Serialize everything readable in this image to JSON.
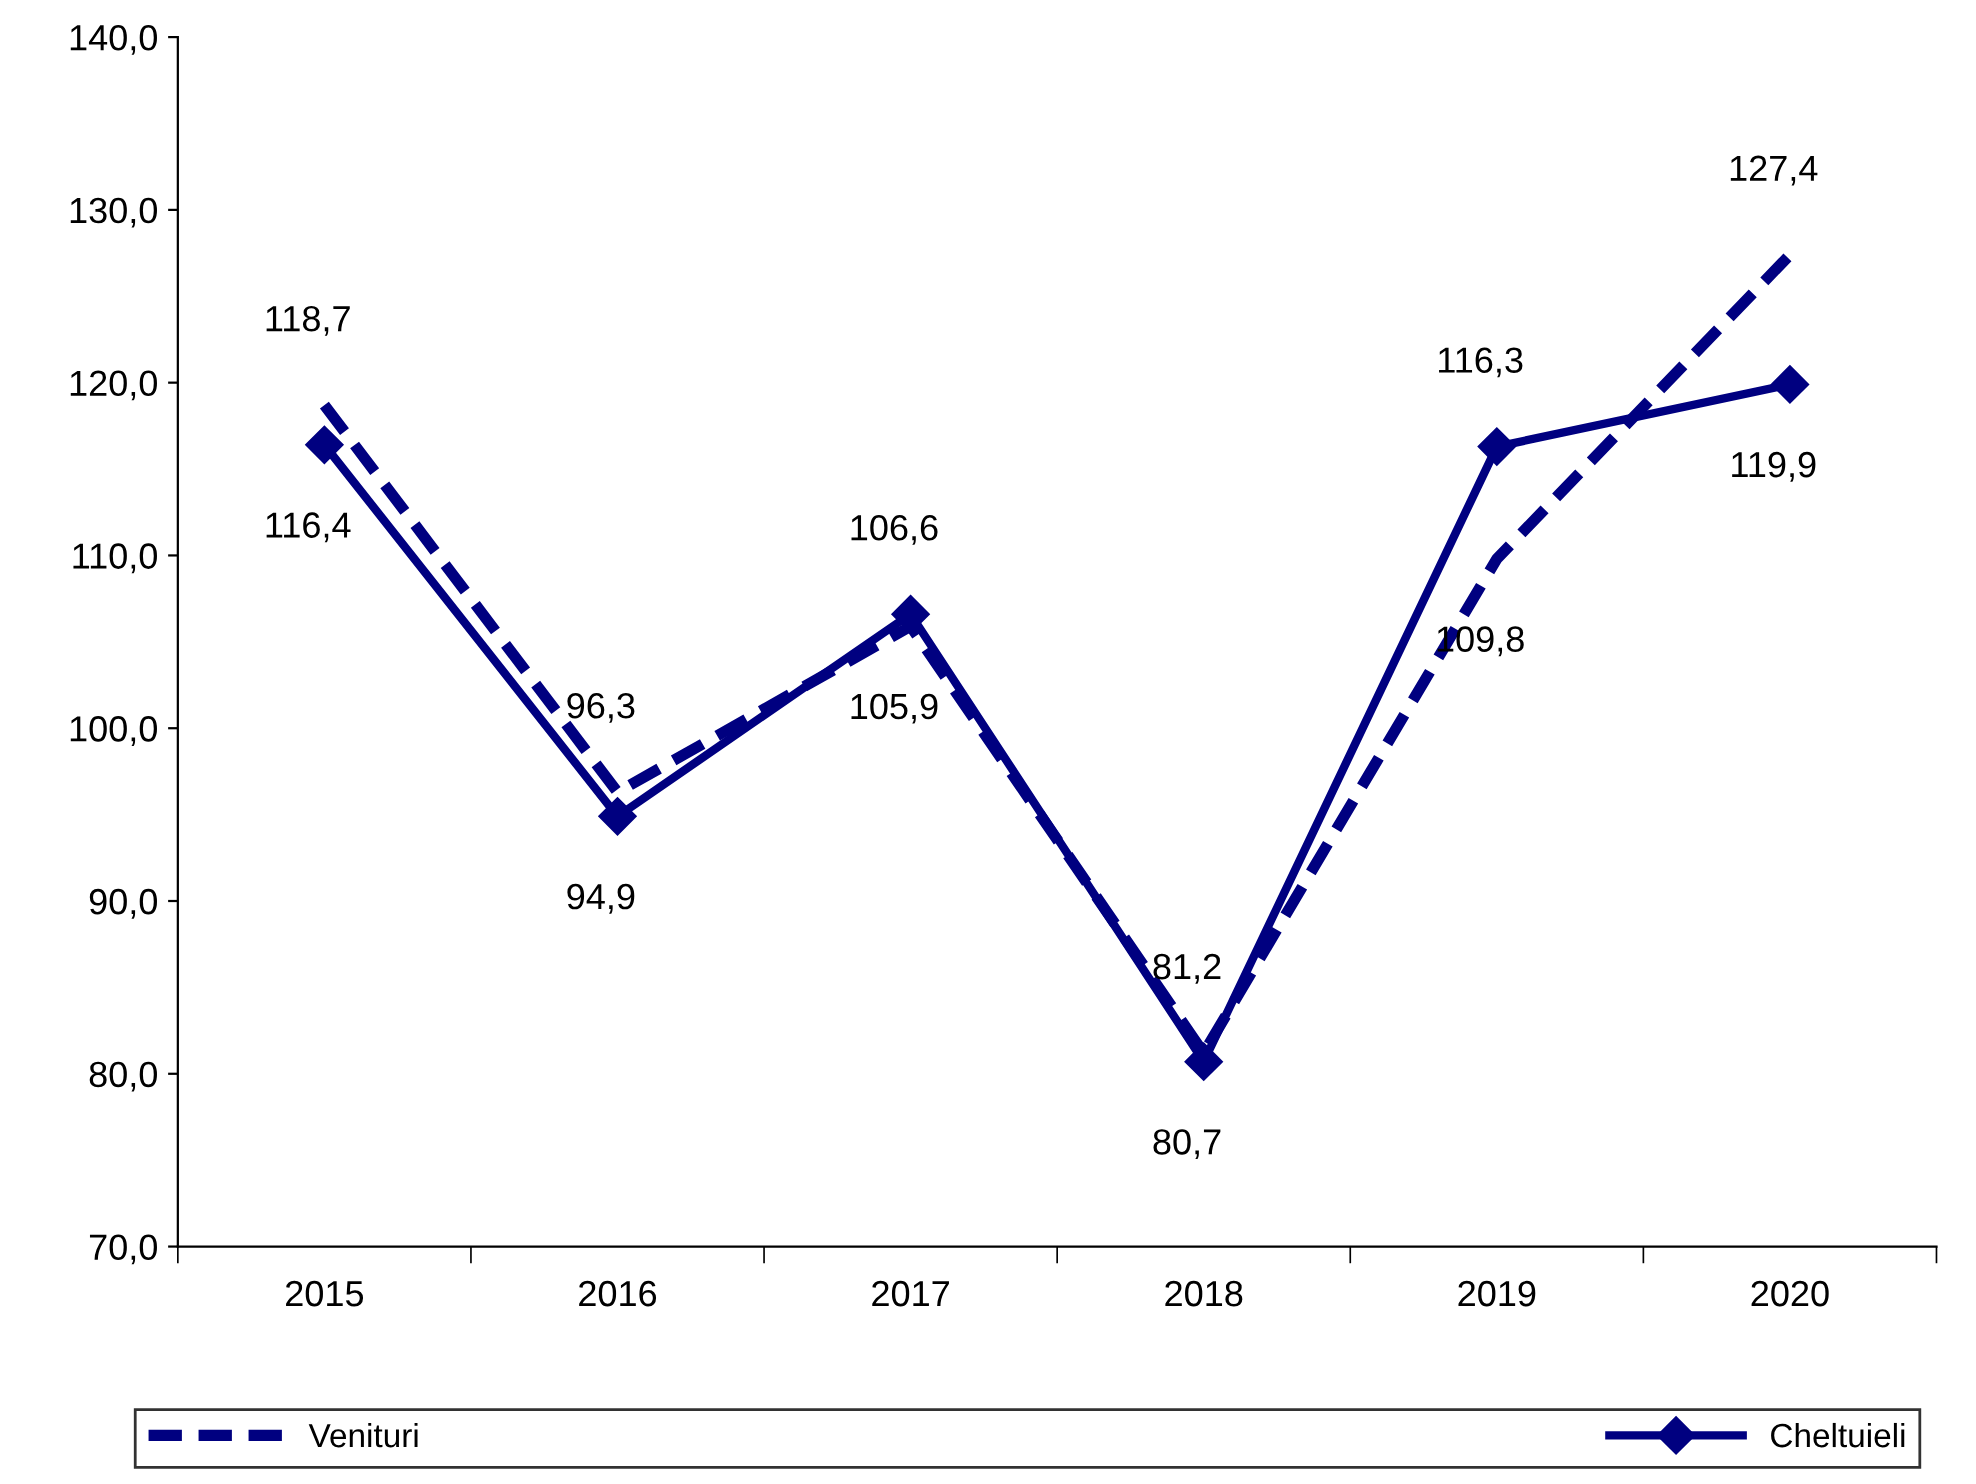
{
  "chart_data": {
    "type": "line",
    "categories": [
      "2015",
      "2016",
      "2017",
      "2018",
      "2019",
      "2020"
    ],
    "series": [
      {
        "name": "Venituri",
        "color": "#000080",
        "values": [
          118.7,
          96.3,
          105.9,
          81.2,
          109.8,
          127.4
        ],
        "value_labels": [
          "118,7",
          "96,3",
          "105,9",
          "81,2",
          "109,8",
          "127,4"
        ],
        "line_style": "dashed",
        "marker": "none"
      },
      {
        "name": "Cheltuieli",
        "color": "#000080",
        "values": [
          116.4,
          94.9,
          106.6,
          80.7,
          116.3,
          119.9
        ],
        "value_labels": [
          "116,4",
          "94,9",
          "106,6",
          "80,7",
          "116,3",
          "119,9"
        ],
        "line_style": "solid",
        "marker": "diamond"
      }
    ],
    "ylim": [
      70,
      140
    ],
    "yticks": [
      {
        "value": 70,
        "label": "70,0"
      },
      {
        "value": 80,
        "label": "80,0"
      },
      {
        "value": 90,
        "label": "90,0"
      },
      {
        "value": 100,
        "label": "100,0"
      },
      {
        "value": 110,
        "label": "110,0"
      },
      {
        "value": 120,
        "label": "120,0"
      },
      {
        "value": 130,
        "label": "130,0"
      },
      {
        "value": 140,
        "label": "140,0"
      }
    ],
    "legend": "bottom",
    "grid": false
  }
}
